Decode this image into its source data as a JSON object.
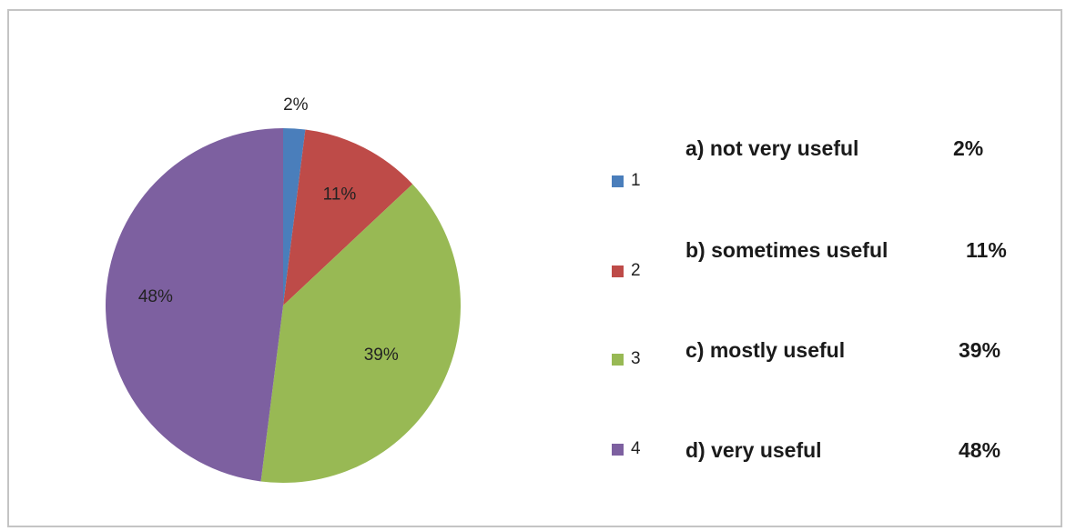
{
  "chart_data": {
    "type": "pie",
    "categories": [
      "1",
      "2",
      "3",
      "4"
    ],
    "values": [
      2,
      11,
      39,
      48
    ],
    "data_labels": [
      "2%",
      "11%",
      "39%",
      "48%"
    ],
    "colors": [
      "#4a7ebb",
      "#be4b48",
      "#98b954",
      "#7d60a0"
    ],
    "legend_position": "right",
    "title": ""
  },
  "legend": {
    "items": [
      {
        "label": "1",
        "color": "#4a7ebb"
      },
      {
        "label": "2",
        "color": "#be4b48"
      },
      {
        "label": "3",
        "color": "#98b954"
      },
      {
        "label": "4",
        "color": "#7d60a0"
      }
    ]
  },
  "answers": [
    {
      "label": "a) not very useful",
      "value": "2%"
    },
    {
      "label": "b) sometimes useful",
      "value": "11%"
    },
    {
      "label": "c) mostly useful",
      "value": "39%"
    },
    {
      "label": "d) very useful",
      "value": "48%"
    }
  ]
}
